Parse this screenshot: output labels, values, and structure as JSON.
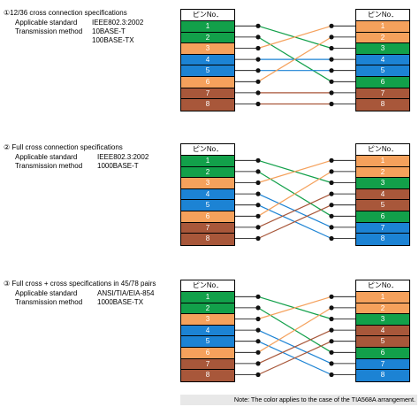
{
  "colors": {
    "green": "#12a04a",
    "orange": "#f5a15c",
    "blue": "#1c83d4",
    "brown": "#a8573a",
    "dot": "#111111"
  },
  "pin_header": "ピンNo．",
  "pins": [
    "1",
    "2",
    "3",
    "4",
    "5",
    "6",
    "7",
    "8"
  ],
  "sections": [
    {
      "heading": "①12/36 cross connection specifications",
      "specs": [
        {
          "label": "Applicable standard",
          "value": "IEEE802.3:2002"
        },
        {
          "label": "Transmission method",
          "value": "10BASE-T"
        },
        {
          "label": "",
          "value": "100BASE-TX"
        }
      ],
      "left_colors": [
        "green",
        "green",
        "orange",
        "blue",
        "blue",
        "orange",
        "brown",
        "brown"
      ],
      "right_colors": [
        "orange",
        "orange",
        "green",
        "blue",
        "blue",
        "green",
        "brown",
        "brown"
      ],
      "wiring": [
        [
          1,
          3
        ],
        [
          2,
          6
        ],
        [
          3,
          1
        ],
        [
          4,
          4
        ],
        [
          5,
          5
        ],
        [
          6,
          2
        ],
        [
          7,
          7
        ],
        [
          8,
          8
        ]
      ]
    },
    {
      "heading": "② Full cross connection specifications",
      "specs": [
        {
          "label": "Applicable standard",
          "value": "IEEE802.3:2002"
        },
        {
          "label": "Transmission method",
          "value": "1000BASE-T"
        }
      ],
      "left_colors": [
        "green",
        "green",
        "orange",
        "blue",
        "blue",
        "orange",
        "brown",
        "brown"
      ],
      "right_colors": [
        "orange",
        "orange",
        "green",
        "brown",
        "brown",
        "green",
        "blue",
        "blue"
      ],
      "wiring": [
        [
          1,
          3
        ],
        [
          2,
          6
        ],
        [
          3,
          1
        ],
        [
          4,
          7
        ],
        [
          5,
          8
        ],
        [
          6,
          2
        ],
        [
          7,
          4
        ],
        [
          8,
          5
        ]
      ]
    },
    {
      "heading": "③ Full cross + cross specifications in 45/78 pairs",
      "specs": [
        {
          "label": "Applicable standard",
          "value": "ANSI/TIA/EIA-854"
        },
        {
          "label": "Transmission method",
          "value": "1000BASE-TX"
        }
      ],
      "left_colors": [
        "green",
        "green",
        "orange",
        "blue",
        "blue",
        "orange",
        "brown",
        "brown"
      ],
      "right_colors": [
        "orange",
        "orange",
        "green",
        "brown",
        "brown",
        "green",
        "blue",
        "blue"
      ],
      "wiring": [
        [
          1,
          3
        ],
        [
          2,
          6
        ],
        [
          3,
          1
        ],
        [
          4,
          7
        ],
        [
          5,
          8
        ],
        [
          6,
          2
        ],
        [
          7,
          4
        ],
        [
          8,
          5
        ]
      ]
    }
  ],
  "note": "Note: The color applies to the case of the TIA568A arrangement."
}
